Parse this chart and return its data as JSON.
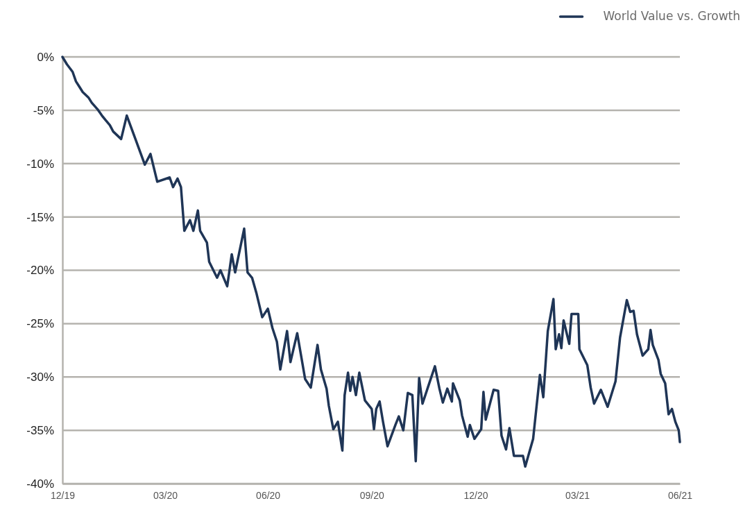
{
  "chart_data": {
    "type": "line",
    "x": [
      "2019-12-31",
      "2020-01-04",
      "2020-01-09",
      "2020-01-12",
      "2020-01-15",
      "2020-01-18",
      "2020-01-23",
      "2020-01-26",
      "2020-01-31",
      "2020-02-04",
      "2020-02-07",
      "2020-02-11",
      "2020-02-14",
      "2020-02-21",
      "2020-02-26",
      "2020-03-05",
      "2020-03-13",
      "2020-03-18",
      "2020-03-24",
      "2020-04-04",
      "2020-04-07",
      "2020-04-11",
      "2020-04-14",
      "2020-04-17",
      "2020-04-22",
      "2020-04-25",
      "2020-04-29",
      "2020-05-01",
      "2020-05-07",
      "2020-05-09",
      "2020-05-16",
      "2020-05-19",
      "2020-05-25",
      "2020-05-29",
      "2020-06-01",
      "2020-06-09",
      "2020-06-12",
      "2020-06-16",
      "2020-06-20",
      "2020-06-25",
      "2020-06-30",
      "2020-07-04",
      "2020-07-08",
      "2020-07-11",
      "2020-07-17",
      "2020-07-20",
      "2020-07-26",
      "2020-08-02",
      "2020-08-07",
      "2020-08-13",
      "2020-08-16",
      "2020-08-21",
      "2020-08-23",
      "2020-08-27",
      "2020-08-31",
      "2020-09-04",
      "2020-09-06",
      "2020-09-09",
      "2020-09-11",
      "2020-09-13",
      "2020-09-16",
      "2020-09-19",
      "2020-09-24",
      "2020-09-30",
      "2020-10-02",
      "2020-10-04",
      "2020-10-07",
      "2020-10-10",
      "2020-10-14",
      "2020-10-21",
      "2020-10-24",
      "2020-10-28",
      "2020-11-01",
      "2020-11-05",
      "2020-11-08",
      "2020-11-11",
      "2020-11-14",
      "2020-11-19",
      "2020-11-25",
      "2020-11-29",
      "2020-12-02",
      "2020-12-06",
      "2020-12-10",
      "2020-12-11",
      "2020-12-17",
      "2020-12-19",
      "2020-12-24",
      "2020-12-26",
      "2020-12-30",
      "2021-01-05",
      "2021-01-07",
      "2021-01-09",
      "2021-01-16",
      "2021-01-20",
      "2021-01-23",
      "2021-01-27",
      "2021-01-30",
      "2021-02-03",
      "2021-02-11",
      "2021-02-13",
      "2021-02-20",
      "2021-02-26",
      "2021-03-01",
      "2021-03-05",
      "2021-03-10",
      "2021-03-12",
      "2021-03-15",
      "2021-03-17",
      "2021-03-19",
      "2021-03-24",
      "2021-03-26",
      "2021-04-01",
      "2021-04-02",
      "2021-04-09",
      "2021-04-12",
      "2021-04-15",
      "2021-04-21",
      "2021-04-27",
      "2021-05-04",
      "2021-05-08",
      "2021-05-14",
      "2021-05-17",
      "2021-05-20",
      "2021-05-23",
      "2021-05-28",
      "2021-06-02",
      "2021-06-04",
      "2021-06-06",
      "2021-06-11",
      "2021-06-13",
      "2021-06-17",
      "2021-06-20",
      "2021-06-23",
      "2021-06-26",
      "2021-06-29",
      "2021-06-30"
    ],
    "series": [
      {
        "name": "World Value vs. Growth",
        "color": "#1f3556",
        "values": [
          0.0,
          -0.7,
          -1.4,
          -2.3,
          -2.8,
          -3.3,
          -3.8,
          -4.3,
          -4.9,
          -5.5,
          -5.9,
          -6.4,
          -7.0,
          -7.7,
          -5.5,
          -7.8,
          -10.1,
          -9.1,
          -11.7,
          -11.3,
          -12.2,
          -11.4,
          -12.2,
          -16.3,
          -15.3,
          -16.3,
          -14.4,
          -16.3,
          -17.4,
          -19.2,
          -20.7,
          -20.0,
          -21.5,
          -18.5,
          -20.2,
          -16.1,
          -20.2,
          -20.7,
          -22.2,
          -24.4,
          -23.6,
          -25.4,
          -26.7,
          -29.3,
          -25.7,
          -28.6,
          -25.9,
          -30.2,
          -31.0,
          -27.0,
          -29.3,
          -31.1,
          -32.7,
          -34.9,
          -34.2,
          -36.9,
          -31.7,
          -29.6,
          -31.3,
          -30.0,
          -31.7,
          -29.6,
          -32.2,
          -33.0,
          -34.9,
          -33.0,
          -32.3,
          -34.2,
          -36.5,
          -34.5,
          -33.7,
          -35.0,
          -31.5,
          -31.7,
          -37.9,
          -30.1,
          -32.5,
          -30.9,
          -29.0,
          -31.1,
          -32.4,
          -31.1,
          -32.3,
          -30.6,
          -32.2,
          -33.6,
          -35.6,
          -34.5,
          -35.8,
          -34.9,
          -31.4,
          -34.0,
          -31.2,
          -31.3,
          -35.5,
          -36.8,
          -34.8,
          -37.4,
          -37.4,
          -38.4,
          -35.8,
          -29.8,
          -31.9,
          -25.7,
          -22.7,
          -27.4,
          -26.0,
          -27.3,
          -24.7,
          -26.9,
          -24.1,
          -24.1,
          -27.4,
          -28.9,
          -31.0,
          -32.5,
          -31.2,
          -32.8,
          -30.4,
          -26.3,
          -22.8,
          -23.9,
          -23.8,
          -26.0,
          -28.0,
          -27.4,
          -25.6,
          -27.0,
          -28.4,
          -29.7,
          -30.6,
          -33.5,
          -33.0,
          -34.2,
          -35.0,
          -36.1
        ]
      }
    ],
    "xlim": [
      "2019-12-31",
      "2021-06-30"
    ],
    "xticks": [
      {
        "value": "2019-12-31",
        "label": "12/19"
      },
      {
        "value": "2020-03-31",
        "label": "03/20"
      },
      {
        "value": "2020-06-30",
        "label": "06/20"
      },
      {
        "value": "2020-09-30",
        "label": "09/20"
      },
      {
        "value": "2020-12-31",
        "label": "12/20"
      },
      {
        "value": "2021-03-31",
        "label": "03/21"
      },
      {
        "value": "2021-06-30",
        "label": "06/21"
      }
    ],
    "ylim": [
      -40,
      0
    ],
    "yticks": [
      {
        "value": 0,
        "label": "0%"
      },
      {
        "value": -5,
        "label": "-5%"
      },
      {
        "value": -10,
        "label": "-10%"
      },
      {
        "value": -15,
        "label": "-15%"
      },
      {
        "value": -20,
        "label": "-20%"
      },
      {
        "value": -25,
        "label": "-25%"
      },
      {
        "value": -30,
        "label": "-30%"
      },
      {
        "value": -35,
        "label": "-35%"
      },
      {
        "value": -40,
        "label": "-40%"
      }
    ],
    "grid": "y",
    "legend": "top right",
    "marker": "none",
    "line_style": "solid"
  }
}
